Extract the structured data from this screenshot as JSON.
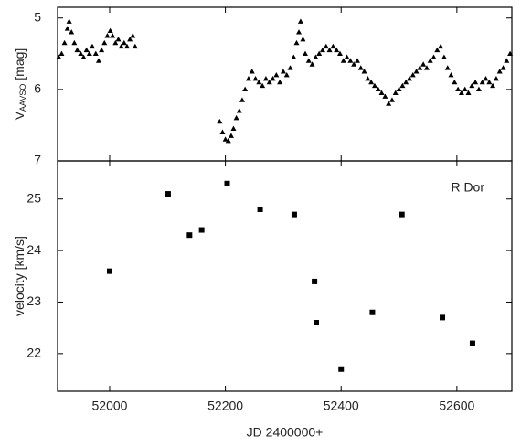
{
  "chart_data": [
    {
      "type": "scatter",
      "marker": "triangle",
      "y_label": "V",
      "y_label_sub": "AAVSO",
      "y_label_suffix": " [mag]",
      "xlim": [
        51910,
        52695
      ],
      "xticks": [
        52000,
        52200,
        52400,
        52600
      ],
      "ylim": [
        7,
        4.85
      ],
      "yticks": [
        5,
        6,
        7
      ],
      "y_inverted": true,
      "series": [
        {
          "color": "#000000",
          "x": [
            51912,
            51917,
            51922,
            51927,
            51930,
            51934,
            51939,
            51944,
            51950,
            51955,
            51960,
            51965,
            51970,
            51976,
            51981,
            51986,
            51991,
            51996,
            52001,
            52005,
            52010,
            52015,
            52020,
            52025,
            52030,
            52035,
            52040,
            52044,
            52190,
            52195,
            52200,
            52205,
            52210,
            52214,
            52219,
            52224,
            52229,
            52234,
            52240,
            52246,
            52252,
            52258,
            52264,
            52270,
            52276,
            52282,
            52288,
            52294,
            52300,
            52306,
            52312,
            52318,
            52323,
            52327,
            52330,
            52334,
            52338,
            52344,
            52350,
            52356,
            52362,
            52368,
            52374,
            52380,
            52386,
            52392,
            52398,
            52404,
            52410,
            52416,
            52422,
            52428,
            52434,
            52440,
            52446,
            52452,
            52458,
            52464,
            52470,
            52476,
            52482,
            52488,
            52494,
            52500,
            52506,
            52512,
            52518,
            52524,
            52530,
            52536,
            52542,
            52548,
            52554,
            52560,
            52566,
            52572,
            52578,
            52584,
            52590,
            52596,
            52602,
            52608,
            52614,
            52620,
            52626,
            52632,
            52638,
            52644,
            52650,
            52656,
            52662,
            52668,
            52674,
            52680,
            52686,
            52692
          ],
          "values": [
            5.55,
            5.5,
            5.35,
            5.15,
            5.05,
            5.2,
            5.35,
            5.45,
            5.5,
            5.55,
            5.45,
            5.5,
            5.4,
            5.5,
            5.6,
            5.45,
            5.35,
            5.25,
            5.18,
            5.25,
            5.35,
            5.3,
            5.4,
            5.35,
            5.4,
            5.3,
            5.25,
            5.4,
            6.45,
            6.6,
            6.7,
            6.72,
            6.65,
            6.55,
            6.4,
            6.3,
            6.15,
            6.0,
            5.85,
            5.75,
            5.85,
            5.9,
            5.95,
            5.85,
            5.9,
            5.85,
            5.8,
            5.9,
            5.75,
            5.8,
            5.7,
            5.55,
            5.35,
            5.2,
            5.05,
            5.3,
            5.5,
            5.6,
            5.65,
            5.55,
            5.5,
            5.45,
            5.4,
            5.45,
            5.4,
            5.45,
            5.5,
            5.6,
            5.55,
            5.6,
            5.65,
            5.6,
            5.7,
            5.75,
            5.85,
            5.9,
            5.95,
            6.0,
            6.05,
            6.1,
            6.2,
            6.15,
            6.05,
            6.0,
            5.95,
            5.9,
            5.85,
            5.8,
            5.75,
            5.7,
            5.65,
            5.7,
            5.6,
            5.55,
            5.45,
            5.4,
            5.55,
            5.7,
            5.8,
            5.9,
            6.0,
            6.05,
            6.0,
            6.05,
            5.95,
            5.9,
            6.0,
            5.9,
            5.85,
            5.9,
            5.95,
            5.85,
            5.75,
            5.7,
            5.6,
            5.5
          ]
        }
      ]
    },
    {
      "type": "scatter",
      "marker": "square",
      "x_label": "JD 2400000+",
      "y_label": "velocity [km/s]",
      "annotation": "R Dor",
      "xlim": [
        51910,
        52695
      ],
      "xticks": [
        52000,
        52200,
        52400,
        52600
      ],
      "ylim": [
        21.27,
        25.74
      ],
      "yticks": [
        22,
        23,
        24,
        25
      ],
      "series": [
        {
          "color": "#000000",
          "x": [
            52000,
            52101,
            52138,
            52159,
            52203,
            52260,
            52319,
            52354,
            52357,
            52400,
            52454,
            52505,
            52575,
            52627
          ],
          "values": [
            23.6,
            25.1,
            24.3,
            24.4,
            25.3,
            24.8,
            24.7,
            23.4,
            22.6,
            21.7,
            22.8,
            24.7,
            22.7,
            22.2
          ]
        }
      ]
    }
  ]
}
